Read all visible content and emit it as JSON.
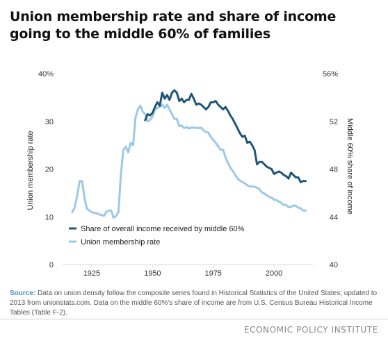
{
  "title": "Union membership rate and share of income going to the middle 60% of families",
  "source_label": "Source:",
  "source_text": " Data on union density follow the composite series found in Historical Statistics of the United States; updated to 2013 from unionstats.com. Data on the middle 60%'s share of income are from U.S. Census Bureau Historical Income Tables (Table F-2).",
  "credit": "ECONOMIC POLICY INSTITUTE",
  "colors": {
    "income": "#1f5678",
    "union": "#9ec8e6",
    "axis": "#d9d9d9",
    "source_accent": "#4a8bbf"
  },
  "chart_data": {
    "type": "line",
    "ylabel_left": "Union membership rate",
    "ylabel_right": "Middle 60% share of income",
    "x_ticks": [
      "1925",
      "1950",
      "1975",
      "2000"
    ],
    "x_tick_values": [
      1925,
      1950,
      1975,
      2000
    ],
    "y_left_ticks": [
      "0",
      "10",
      "20",
      "30",
      "40%"
    ],
    "y_left_values": [
      0,
      10,
      20,
      30,
      40
    ],
    "y_right_ticks": [
      "40",
      "44",
      "48",
      "52",
      "56%"
    ],
    "y_right_values": [
      40,
      44,
      48,
      52,
      56
    ],
    "xlim": [
      1913,
      2016
    ],
    "ylim_left": [
      0,
      40
    ],
    "ylim_right": [
      40,
      56
    ],
    "legend": "inside-bottom-left",
    "grid": false,
    "series": [
      {
        "name": "Share of overall income received by middle 60%",
        "axis": "right",
        "x": [
          1947,
          1948,
          1949,
          1950,
          1951,
          1952,
          1953,
          1954,
          1955,
          1956,
          1957,
          1958,
          1959,
          1960,
          1961,
          1962,
          1963,
          1964,
          1965,
          1966,
          1967,
          1968,
          1969,
          1970,
          1971,
          1972,
          1973,
          1974,
          1975,
          1976,
          1977,
          1978,
          1979,
          1980,
          1981,
          1982,
          1983,
          1984,
          1985,
          1986,
          1987,
          1988,
          1989,
          1990,
          1991,
          1992,
          1993,
          1994,
          1995,
          1996,
          1997,
          1998,
          1999,
          2000,
          2001,
          2002,
          2003,
          2004,
          2005,
          2006,
          2007,
          2008,
          2009,
          2010,
          2011,
          2012,
          2013
        ],
        "values": [
          52.1,
          52.6,
          52.5,
          52.7,
          53.2,
          53.6,
          53.3,
          54.4,
          53.9,
          54.2,
          53.8,
          54.4,
          54.6,
          54.4,
          53.7,
          53.9,
          53.6,
          53.8,
          53.8,
          54.3,
          53.9,
          53.4,
          53.5,
          53.4,
          53.2,
          53.0,
          53.2,
          53.6,
          53.6,
          53.7,
          53.4,
          53.2,
          53.0,
          53.2,
          52.9,
          52.5,
          52.2,
          51.8,
          51.4,
          51.0,
          50.7,
          50.8,
          50.2,
          50.3,
          50.0,
          49.6,
          48.4,
          48.6,
          48.6,
          48.4,
          48.2,
          48.1,
          48.0,
          47.6,
          47.7,
          47.8,
          47.7,
          47.5,
          47.4,
          47.2,
          47.7,
          47.5,
          47.3,
          47.3,
          46.9,
          47.0,
          47.0
        ]
      },
      {
        "name": "Union membership rate",
        "axis": "left",
        "x": [
          1917,
          1918,
          1919,
          1920,
          1921,
          1922,
          1923,
          1924,
          1925,
          1926,
          1927,
          1928,
          1929,
          1930,
          1931,
          1932,
          1933,
          1934,
          1935,
          1936,
          1937,
          1938,
          1939,
          1940,
          1941,
          1942,
          1943,
          1944,
          1945,
          1946,
          1947,
          1948,
          1949,
          1950,
          1951,
          1952,
          1953,
          1954,
          1955,
          1956,
          1957,
          1958,
          1959,
          1960,
          1961,
          1962,
          1963,
          1964,
          1965,
          1966,
          1967,
          1968,
          1969,
          1970,
          1971,
          1972,
          1973,
          1974,
          1975,
          1976,
          1977,
          1978,
          1979,
          1980,
          1981,
          1982,
          1983,
          1984,
          1985,
          1986,
          1987,
          1988,
          1989,
          1990,
          1991,
          1992,
          1993,
          1994,
          1995,
          1996,
          1997,
          1998,
          1999,
          2000,
          2001,
          2002,
          2003,
          2004,
          2005,
          2006,
          2007,
          2008,
          2009,
          2010,
          2011,
          2012,
          2013
        ],
        "values": [
          11.0,
          12.0,
          14.5,
          17.5,
          17.5,
          14.0,
          11.7,
          11.3,
          11.0,
          10.8,
          10.8,
          10.5,
          10.4,
          10.2,
          11.0,
          11.3,
          11.3,
          9.8,
          10.2,
          11.0,
          19.0,
          24.0,
          24.7,
          23.5,
          25.5,
          25.0,
          30.8,
          32.5,
          33.3,
          32.0,
          31.5,
          30.0,
          30.3,
          31.0,
          32.5,
          32.8,
          33.0,
          33.5,
          32.8,
          33.5,
          32.5,
          31.5,
          30.5,
          30.5,
          29.0,
          29.1,
          28.6,
          28.8,
          28.5,
          28.7,
          28.7,
          28.6,
          28.6,
          28.7,
          28.1,
          27.8,
          27.6,
          26.7,
          26.1,
          25.5,
          24.8,
          24.0,
          24.1,
          22.5,
          21.3,
          20.3,
          19.6,
          18.8,
          18.0,
          17.6,
          17.3,
          17.0,
          16.6,
          16.4,
          16.3,
          16.3,
          16.1,
          15.8,
          15.1,
          14.9,
          14.5,
          14.2,
          14.0,
          13.6,
          13.5,
          13.2,
          12.9,
          12.5,
          12.5,
          12.0,
          12.1,
          12.4,
          12.3,
          11.9,
          11.8,
          11.3,
          11.3
        ]
      }
    ]
  }
}
